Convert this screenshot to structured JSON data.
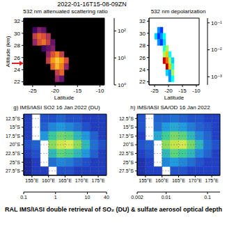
{
  "title": "2022-01-16T15-08-09ZN",
  "caption": "RAL IMS/IASI double retrieval of SO₂ (DU) & sulfate aerosol optical depth",
  "chart_data": [
    {
      "type": "heatmap",
      "title": "532 nm attenuated scattering ratio",
      "xlabel": "Latitude",
      "ylabel": "Altitude (km)",
      "xlim": [
        -27,
        -9
      ],
      "ylim": [
        21.5,
        32.5
      ],
      "xticks": [
        -25,
        -20,
        -15,
        -10
      ],
      "yticks": [
        22,
        24,
        26,
        28,
        30,
        32
      ],
      "grid": false,
      "x_edges": [
        -26,
        -25,
        -24,
        -23,
        -22,
        -21,
        -20,
        -19,
        -18,
        -17,
        -16
      ],
      "y_edges": [
        31,
        30,
        29,
        28,
        27,
        26,
        25,
        24,
        23,
        22
      ],
      "cells": [
        [
          null,
          3,
          8,
          5,
          null,
          null,
          null,
          null,
          null,
          null
        ],
        [
          null,
          20,
          40,
          30,
          15,
          null,
          null,
          null,
          null,
          null
        ],
        [
          null,
          10,
          30,
          50,
          20,
          5,
          null,
          null,
          null,
          null
        ],
        [
          null,
          null,
          null,
          3,
          5,
          8,
          null,
          null,
          null,
          null
        ],
        [
          null,
          null,
          null,
          null,
          10,
          30,
          60,
          20,
          null,
          null
        ],
        [
          null,
          null,
          null,
          null,
          20,
          80,
          150,
          100,
          30,
          null
        ],
        [
          null,
          null,
          null,
          null,
          null,
          40,
          120,
          60,
          10,
          null
        ],
        [
          null,
          null,
          null,
          null,
          null,
          null,
          20,
          40,
          null,
          null
        ],
        [
          null,
          null,
          null,
          null,
          null,
          null,
          10,
          5,
          null,
          null
        ]
      ],
      "colorbar": {
        "range": [
          1,
          300
        ],
        "log": true,
        "ticks": [
          {
            "value": 1,
            "label": "10⁰"
          },
          {
            "value": 10,
            "label": "10¹"
          },
          {
            "value": 100,
            "label": "10²"
          }
        ]
      }
    },
    {
      "type": "heatmap",
      "title": "532 nm depolarization",
      "xlabel": "Latitude",
      "xlim": [
        -27,
        -9
      ],
      "ylim": [
        21.5,
        32.5
      ],
      "xticks": [
        -25,
        -20,
        -15,
        -10
      ],
      "yticks": [
        22,
        24,
        26,
        28,
        30,
        32
      ],
      "grid": false,
      "x_edges": [
        -26,
        -25,
        -24,
        -23,
        -22,
        -21,
        -20,
        -19,
        -18,
        -17,
        -16
      ],
      "y_edges": [
        31,
        30,
        29,
        28,
        27,
        26,
        25,
        24,
        23,
        22
      ],
      "cells": [
        [
          null,
          null,
          0.003,
          0.002,
          null,
          null,
          null,
          null,
          null,
          null
        ],
        [
          null,
          0.004,
          0.002,
          0.003,
          0.005,
          null,
          null,
          null,
          null,
          null
        ],
        [
          null,
          null,
          0.003,
          0.002,
          0.004,
          null,
          null,
          null,
          null,
          null
        ],
        [
          null,
          null,
          null,
          null,
          0.006,
          0.01,
          null,
          null,
          null,
          null
        ],
        [
          null,
          null,
          null,
          null,
          0.01,
          0.02,
          0.005,
          null,
          null,
          null
        ],
        [
          null,
          null,
          null,
          null,
          0.08,
          0.03,
          0.01,
          0.004,
          null,
          null
        ],
        [
          null,
          null,
          null,
          null,
          null,
          0.1,
          0.02,
          0.006,
          null,
          null
        ],
        [
          null,
          null,
          null,
          null,
          null,
          0.004,
          0.003,
          0.01,
          null,
          null
        ],
        [
          null,
          null,
          null,
          null,
          null,
          null,
          0.003,
          0.005,
          null,
          null
        ]
      ],
      "colorbar": {
        "range": [
          0.0005,
          0.15
        ],
        "log": true,
        "ticks": [
          {
            "value": 0.001,
            "label": "10⁻³"
          },
          {
            "value": 0.01,
            "label": "10⁻²"
          },
          {
            "value": 0.1,
            "label": "10⁻¹"
          }
        ]
      }
    },
    {
      "type": "heatmap",
      "panel": "g)",
      "title": "IMS/IASI SO2 16 Jan 2022 (DU)",
      "xlim": [
        152.5,
        177.5
      ],
      "ylim": [
        -28.75,
        -11.25
      ],
      "grid": true,
      "xticks": [
        {
          "value": 155,
          "label": "155°E"
        },
        {
          "value": 160,
          "label": "160°E"
        },
        {
          "value": 165,
          "label": "165°E"
        },
        {
          "value": 170,
          "label": "170°E"
        },
        {
          "value": 175,
          "label": "175°E"
        }
      ],
      "yticks": [
        {
          "value": -12.5,
          "label": "12.5°S"
        },
        {
          "value": -15,
          "label": "15°S"
        },
        {
          "value": -17.5,
          "label": "17.5°S"
        },
        {
          "value": -20,
          "label": "20°S"
        },
        {
          "value": -22.5,
          "label": "22.5°S"
        },
        {
          "value": -25,
          "label": "25°S"
        },
        {
          "value": -27.5,
          "label": "27.5°S"
        }
      ],
      "x_edges": [
        152.5,
        155,
        157.5,
        160,
        162.5,
        165,
        167.5,
        170,
        172.5,
        175,
        177.5
      ],
      "y_edges": [
        -11.25,
        -13.75,
        -16.25,
        -18.75,
        -21.25,
        -23.75,
        -26.25,
        -28.75
      ],
      "cells": [
        [
          0.3,
          null,
          0.4,
          0.4,
          0.5,
          0.4,
          0.4,
          0.3,
          0.3,
          0.3
        ],
        [
          0.3,
          null,
          0.5,
          0.8,
          1,
          0.8,
          0.6,
          0.4,
          0.3,
          0.3
        ],
        [
          0.3,
          null,
          1,
          3,
          6,
          5,
          2,
          1,
          0.5,
          0.3
        ],
        [
          0.4,
          0.5,
          null,
          8,
          20,
          25,
          8,
          2,
          0.6,
          0.4
        ],
        [
          0.3,
          0.4,
          null,
          2,
          5,
          4,
          2,
          1,
          0.5,
          0.3
        ],
        [
          0.2,
          0.3,
          null,
          0.6,
          0.8,
          0.7,
          0.5,
          0.4,
          0.3,
          0.3
        ],
        [
          0.2,
          0.3,
          0.3,
          null,
          0.4,
          0.4,
          0.3,
          0.3,
          0.3,
          0.3
        ]
      ],
      "colorbar": {
        "range": [
          0.1,
          40
        ],
        "log": true,
        "ticks": [
          0.1,
          1,
          10,
          40
        ]
      }
    },
    {
      "type": "heatmap",
      "panel": "h)",
      "title": "IMS/IASI SA/OD 16 Jan 2022",
      "xlim": [
        152.5,
        177.5
      ],
      "ylim": [
        -28.75,
        -11.25
      ],
      "grid": true,
      "xticks": [
        {
          "value": 155,
          "label": "155°E"
        },
        {
          "value": 160,
          "label": "160°E"
        },
        {
          "value": 165,
          "label": "165°E"
        },
        {
          "value": 170,
          "label": "170°E"
        },
        {
          "value": 175,
          "label": "175°E"
        }
      ],
      "yticks": [
        {
          "value": -12.5,
          "label": "12.5°S"
        },
        {
          "value": -15,
          "label": "15°S"
        },
        {
          "value": -17.5,
          "label": "17.5°S"
        },
        {
          "value": -20,
          "label": "20°S"
        },
        {
          "value": -22.5,
          "label": "22.5°S"
        },
        {
          "value": -25,
          "label": "25°S"
        },
        {
          "value": -27.5,
          "label": "27.5°S"
        }
      ],
      "x_edges": [
        152.5,
        155,
        157.5,
        160,
        162.5,
        165,
        167.5,
        170,
        172.5,
        175,
        177.5
      ],
      "y_edges": [
        -11.25,
        -13.75,
        -16.25,
        -18.75,
        -21.25,
        -23.75,
        -26.25,
        -28.75
      ],
      "cells": [
        [
          0.006,
          null,
          0.007,
          0.007,
          0.008,
          0.007,
          0.006,
          0.006,
          0.005,
          0.005
        ],
        [
          0.006,
          null,
          0.008,
          0.012,
          0.015,
          0.012,
          0.009,
          0.007,
          0.006,
          0.005
        ],
        [
          0.005,
          null,
          0.015,
          0.03,
          0.05,
          0.04,
          0.02,
          0.01,
          0.007,
          0.005
        ],
        [
          0.006,
          0.007,
          null,
          0.06,
          0.1,
          0.12,
          0.05,
          0.02,
          0.008,
          0.006
        ],
        [
          0.005,
          0.006,
          null,
          0.02,
          0.04,
          0.03,
          0.02,
          0.01,
          0.007,
          0.005
        ],
        [
          0.004,
          0.005,
          null,
          0.01,
          0.012,
          0.01,
          0.008,
          0.006,
          0.005,
          0.005
        ],
        [
          0.004,
          0.005,
          0.005,
          null,
          0.006,
          0.006,
          0.005,
          0.005,
          0.005,
          0.005
        ]
      ],
      "colorbar": {
        "range": [
          0.002,
          0.2
        ],
        "log": true,
        "ticks": [
          0.002,
          0.01,
          0.1
        ]
      }
    }
  ]
}
